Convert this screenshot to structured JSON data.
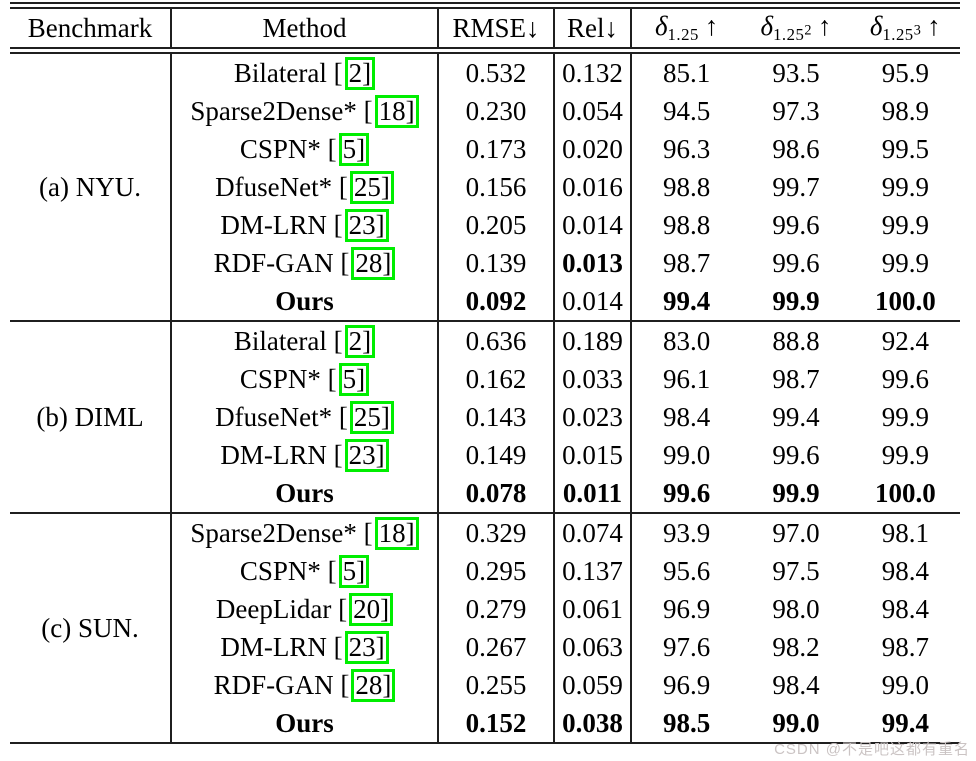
{
  "header": {
    "benchmark": "Benchmark",
    "method": "Method",
    "rmse": "RMSE↓",
    "rel": "Rel↓",
    "delta_symbol": "δ",
    "delta_arrow": "↑",
    "delta_cols": [
      {
        "sub": "1.25",
        "sup": ""
      },
      {
        "sub": "1.25",
        "sup": "2"
      },
      {
        "sub": "1.25",
        "sup": "3"
      }
    ]
  },
  "sections": [
    {
      "benchmark": "(a) NYU.",
      "rows": [
        {
          "pre": "Bilateral [",
          "cite": "2]",
          "rmse": "0.532",
          "rel": "0.132",
          "d1": "85.1",
          "d2": "93.5",
          "d3": "95.9"
        },
        {
          "pre": "Sparse2Dense* [",
          "cite": "18]",
          "rmse": "0.230",
          "rel": "0.054",
          "d1": "94.5",
          "d2": "97.3",
          "d3": "98.9"
        },
        {
          "pre": "CSPN* [",
          "cite": "5]",
          "rmse": "0.173",
          "rel": "0.020",
          "d1": "96.3",
          "d2": "98.6",
          "d3": "99.5"
        },
        {
          "pre": "DfuseNet* [",
          "cite": "25]",
          "rmse": "0.156",
          "rel": "0.016",
          "d1": "98.8",
          "d2": "99.7",
          "d3": "99.9"
        },
        {
          "pre": "DM-LRN [",
          "cite": "23]",
          "rmse": "0.205",
          "rel": "0.014",
          "d1": "98.8",
          "d2": "99.6",
          "d3": "99.9"
        },
        {
          "pre": "RDF-GAN [",
          "cite": "28]",
          "rmse": "0.139",
          "rel": "0.013",
          "d1": "98.7",
          "d2": "99.6",
          "d3": "99.9"
        },
        {
          "pre": "Ours",
          "cite": "",
          "rmse": "0.092",
          "rel": "0.014",
          "d1": "99.4",
          "d2": "99.9",
          "d3": "100.0"
        }
      ]
    },
    {
      "benchmark": "(b) DIML",
      "rows": [
        {
          "pre": "Bilateral [",
          "cite": "2]",
          "rmse": "0.636",
          "rel": "0.189",
          "d1": "83.0",
          "d2": "88.8",
          "d3": "92.4"
        },
        {
          "pre": "CSPN* [",
          "cite": "5]",
          "rmse": "0.162",
          "rel": "0.033",
          "d1": "96.1",
          "d2": "98.7",
          "d3": "99.6"
        },
        {
          "pre": "DfuseNet* [",
          "cite": "25]",
          "rmse": "0.143",
          "rel": "0.023",
          "d1": "98.4",
          "d2": "99.4",
          "d3": "99.9"
        },
        {
          "pre": "DM-LRN [",
          "cite": "23]",
          "rmse": "0.149",
          "rel": "0.015",
          "d1": "99.0",
          "d2": "99.6",
          "d3": "99.9"
        },
        {
          "pre": "Ours",
          "cite": "",
          "rmse": "0.078",
          "rel": "0.011",
          "d1": "99.6",
          "d2": "99.9",
          "d3": "100.0"
        }
      ]
    },
    {
      "benchmark": "(c) SUN.",
      "rows": [
        {
          "pre": "Sparse2Dense* [",
          "cite": "18]",
          "rmse": "0.329",
          "rel": "0.074",
          "d1": "93.9",
          "d2": "97.0",
          "d3": "98.1"
        },
        {
          "pre": "CSPN* [",
          "cite": "5]",
          "rmse": "0.295",
          "rel": "0.137",
          "d1": "95.6",
          "d2": "97.5",
          "d3": "98.4"
        },
        {
          "pre": "DeepLidar [",
          "cite": "20]",
          "rmse": "0.279",
          "rel": "0.061",
          "d1": "96.9",
          "d2": "98.0",
          "d3": "98.4"
        },
        {
          "pre": "DM-LRN [",
          "cite": "23]",
          "rmse": "0.267",
          "rel": "0.063",
          "d1": "97.6",
          "d2": "98.2",
          "d3": "98.7"
        },
        {
          "pre": "RDF-GAN [",
          "cite": "28]",
          "rmse": "0.255",
          "rel": "0.059",
          "d1": "96.9",
          "d2": "98.4",
          "d3": "99.0"
        },
        {
          "pre": "Ours",
          "cite": "",
          "rmse": "0.152",
          "rel": "0.038",
          "d1": "98.5",
          "d2": "99.0",
          "d3": "99.4"
        }
      ]
    }
  ],
  "watermark": "CSDN @不是吧这都有重名",
  "colors": {
    "citation_box": "#00ee00",
    "rule_line": "#1f1f1f",
    "watermark_text": "#cbc4c4"
  }
}
